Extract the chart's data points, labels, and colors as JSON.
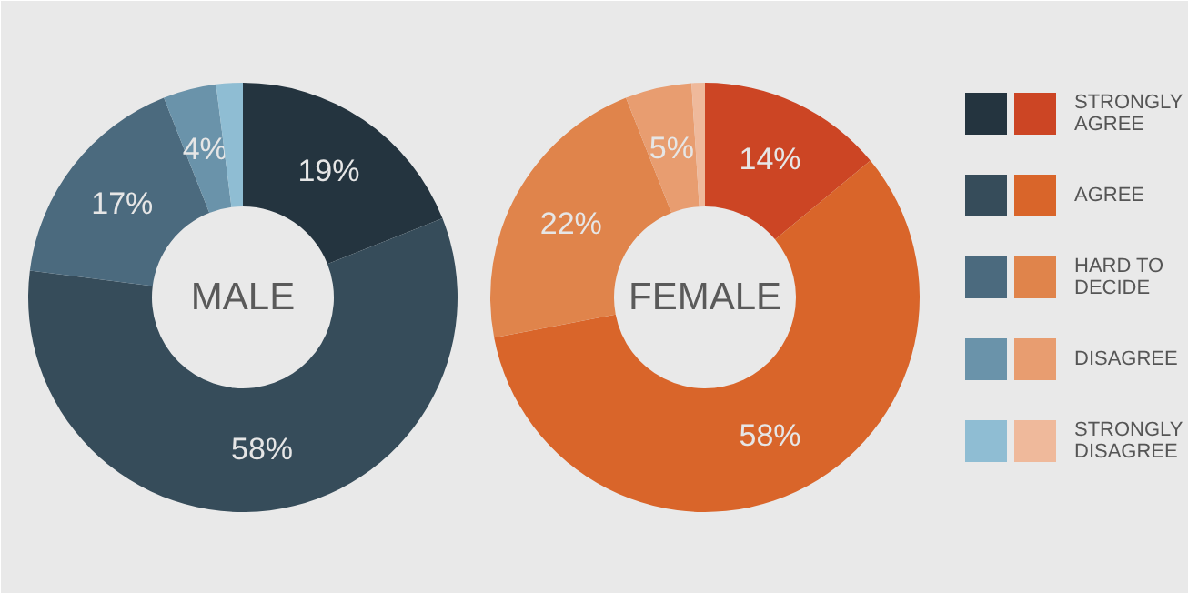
{
  "chart_data": {
    "type": "donut",
    "categories": [
      "STRONGLY AGREE",
      "AGREE",
      "HARD TO DECIDE",
      "DISAGREE",
      "STRONGLY DISAGREE"
    ],
    "legend": "right",
    "series": [
      {
        "name": "MALE",
        "values": [
          19,
          58,
          17,
          4,
          2
        ],
        "value_labels": [
          "19%",
          "58%",
          "17%",
          "4%",
          null
        ],
        "colors": [
          "#24343f",
          "#364c5a",
          "#4b6a7e",
          "#6a93aa",
          "#8fbdd3"
        ]
      },
      {
        "name": "FEMALE",
        "values": [
          14,
          58,
          22,
          5,
          1
        ],
        "value_labels": [
          "14%",
          "58%",
          "22%",
          "5%",
          null
        ],
        "colors": [
          "#cc4524",
          "#d9652a",
          "#e0844b",
          "#e89d70",
          "#efb99b"
        ]
      }
    ]
  }
}
